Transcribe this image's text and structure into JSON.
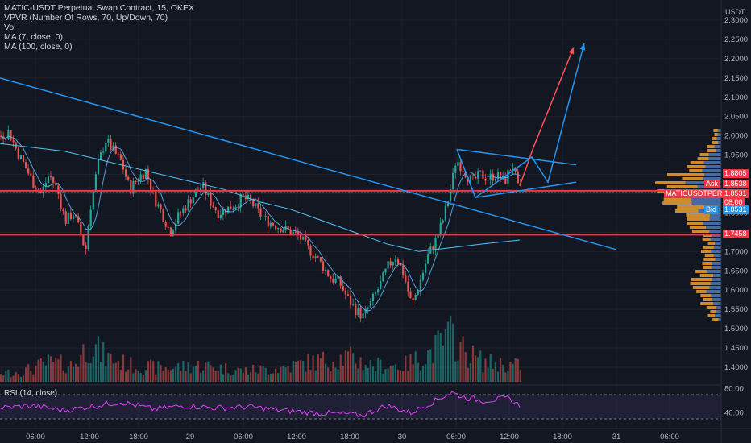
{
  "legend": {
    "title": "MATIC-USDT Perpetual Swap Contract, 15, OKEX",
    "vpvr": "VPVR (Number Of Rows, 70, Up/Down, 70)",
    "vol": "Vol",
    "ma7": "MA (7, close, 0)",
    "ma100": "MA (100, close, 0)"
  },
  "rsi_legend": "RSI (14, close)",
  "price_axis": {
    "currency": "USDT",
    "ticks": [
      "2.3000",
      "2.2500",
      "2.2000",
      "2.1500",
      "2.1000",
      "2.0500",
      "2.0000",
      "1.9500",
      "1.9000",
      "1.8500",
      "1.8000",
      "1.7500",
      "1.7000",
      "1.6500",
      "1.6000",
      "1.5500",
      "1.5000",
      "1.4500",
      "1.4000"
    ]
  },
  "rsi_axis": {
    "ticks": [
      "80.00",
      "40.00"
    ]
  },
  "price_tags": {
    "upper_level": "1.8805",
    "ask_label": "Ask",
    "ask_value": "1.8538",
    "symbol": "MATICUSDTPERP",
    "last": "1.8531",
    "countdown": "08:00",
    "bid_label": "Bid",
    "bid_value": "1.8531",
    "lower_level": "1.7458"
  },
  "time_axis": {
    "ticks": [
      "06:00",
      "12:00",
      "18:00",
      "29",
      "06:00",
      "12:00",
      "18:00",
      "30",
      "06:00",
      "12:00",
      "18:00",
      "31",
      "06:00"
    ]
  },
  "colors": {
    "up": "#26a69a",
    "down": "#ef5350",
    "background": "#131722",
    "level_line": "#f23645",
    "trend_line": "#2196f3",
    "rsi": "#e040fb",
    "ma100": "#4fc3f7",
    "vp_up": "#f0a030",
    "vp_down": "#5b8fd6"
  },
  "chart_data": {
    "type": "candlestick",
    "symbol": "MATIC-USDT Perpetual Swap Contract",
    "timeframe": "15",
    "exchange": "OKEX",
    "ylim": [
      1.37,
      2.33
    ],
    "horizontal_levels": [
      1.8805,
      1.7458
    ],
    "last_price": 1.8531,
    "ask": 1.8538,
    "bid": 1.8531,
    "close_path": [
      [
        0,
        2.0
      ],
      [
        10,
        2.01
      ],
      [
        20,
        1.96
      ],
      [
        30,
        1.92
      ],
      [
        40,
        1.88
      ],
      [
        50,
        1.85
      ],
      [
        60,
        1.9
      ],
      [
        70,
        1.86
      ],
      [
        80,
        1.78
      ],
      [
        90,
        1.8
      ],
      [
        100,
        1.74
      ],
      [
        105,
        1.7
      ],
      [
        110,
        1.8
      ],
      [
        120,
        1.92
      ],
      [
        130,
        1.99
      ],
      [
        140,
        1.96
      ],
      [
        150,
        1.93
      ],
      [
        160,
        1.86
      ],
      [
        170,
        1.89
      ],
      [
        180,
        1.91
      ],
      [
        190,
        1.84
      ],
      [
        200,
        1.8
      ],
      [
        210,
        1.75
      ],
      [
        220,
        1.79
      ],
      [
        230,
        1.82
      ],
      [
        240,
        1.85
      ],
      [
        250,
        1.87
      ],
      [
        260,
        1.83
      ],
      [
        270,
        1.8
      ],
      [
        280,
        1.81
      ],
      [
        290,
        1.82
      ],
      [
        300,
        1.84
      ],
      [
        310,
        1.83
      ],
      [
        320,
        1.8
      ],
      [
        330,
        1.78
      ],
      [
        340,
        1.77
      ],
      [
        350,
        1.76
      ],
      [
        360,
        1.75
      ],
      [
        370,
        1.74
      ],
      [
        380,
        1.71
      ],
      [
        390,
        1.69
      ],
      [
        400,
        1.66
      ],
      [
        410,
        1.63
      ],
      [
        420,
        1.62
      ],
      [
        430,
        1.58
      ],
      [
        440,
        1.55
      ],
      [
        450,
        1.53
      ],
      [
        460,
        1.57
      ],
      [
        470,
        1.61
      ],
      [
        480,
        1.66
      ],
      [
        490,
        1.69
      ],
      [
        500,
        1.64
      ],
      [
        510,
        1.56
      ],
      [
        520,
        1.62
      ],
      [
        530,
        1.69
      ],
      [
        540,
        1.73
      ],
      [
        550,
        1.79
      ],
      [
        560,
        1.88
      ],
      [
        565,
        1.94
      ],
      [
        575,
        1.91
      ],
      [
        585,
        1.88
      ],
      [
        595,
        1.9
      ],
      [
        605,
        1.89
      ],
      [
        615,
        1.9
      ],
      [
        625,
        1.88
      ],
      [
        635,
        1.93
      ],
      [
        642,
        1.86
      ],
      [
        648,
        1.86
      ]
    ],
    "volume_path": [
      [
        0,
        0.15
      ],
      [
        30,
        0.2
      ],
      [
        60,
        0.35
      ],
      [
        90,
        0.3
      ],
      [
        110,
        0.7
      ],
      [
        130,
        0.45
      ],
      [
        160,
        0.3
      ],
      [
        200,
        0.25
      ],
      [
        250,
        0.3
      ],
      [
        300,
        0.2
      ],
      [
        350,
        0.25
      ],
      [
        380,
        0.35
      ],
      [
        410,
        0.4
      ],
      [
        430,
        0.45
      ],
      [
        460,
        0.3
      ],
      [
        500,
        0.3
      ],
      [
        530,
        0.5
      ],
      [
        560,
        0.85
      ],
      [
        575,
        0.55
      ],
      [
        600,
        0.35
      ],
      [
        640,
        0.3
      ]
    ],
    "rsi_ylim": [
      20,
      90
    ],
    "rsi_bands": [
      70,
      30
    ],
    "rsi_path": [
      [
        0,
        48
      ],
      [
        40,
        52
      ],
      [
        80,
        44
      ],
      [
        110,
        50
      ],
      [
        150,
        58
      ],
      [
        190,
        46
      ],
      [
        230,
        52
      ],
      [
        270,
        48
      ],
      [
        310,
        50
      ],
      [
        350,
        44
      ],
      [
        390,
        40
      ],
      [
        430,
        38
      ],
      [
        450,
        36
      ],
      [
        480,
        52
      ],
      [
        510,
        40
      ],
      [
        540,
        60
      ],
      [
        560,
        74
      ],
      [
        575,
        66
      ],
      [
        600,
        60
      ],
      [
        630,
        64
      ],
      [
        645,
        52
      ]
    ],
    "ma100_path": [
      [
        0,
        1.98
      ],
      [
        40,
        1.97
      ],
      [
        80,
        1.96
      ],
      [
        120,
        1.94
      ],
      [
        160,
        1.92
      ],
      [
        200,
        1.9
      ],
      [
        240,
        1.88
      ],
      [
        280,
        1.86
      ],
      [
        320,
        1.83
      ],
      [
        360,
        1.81
      ],
      [
        400,
        1.78
      ],
      [
        440,
        1.75
      ],
      [
        480,
        1.72
      ],
      [
        520,
        1.7
      ],
      [
        560,
        1.71
      ],
      [
        600,
        1.72
      ],
      [
        645,
        1.73
      ]
    ],
    "drawings": {
      "descending_trendline": [
        [
          0,
          2.15
        ],
        [
          765,
          1.705
        ]
      ],
      "triangle_upper": [
        [
          567,
          1.965
        ],
        [
          715,
          1.925
        ]
      ],
      "triangle_lower": [
        [
          590,
          1.84
        ],
        [
          715,
          1.88
        ]
      ],
      "zigzag": [
        [
          567,
          1.965
        ],
        [
          590,
          1.84
        ],
        [
          660,
          1.945
        ],
        [
          680,
          1.88
        ],
        [
          725,
          2.24
        ]
      ],
      "red_projection": [
        [
          645,
          1.87
        ],
        [
          662,
          1.97
        ],
        [
          712,
          2.23
        ]
      ]
    }
  }
}
